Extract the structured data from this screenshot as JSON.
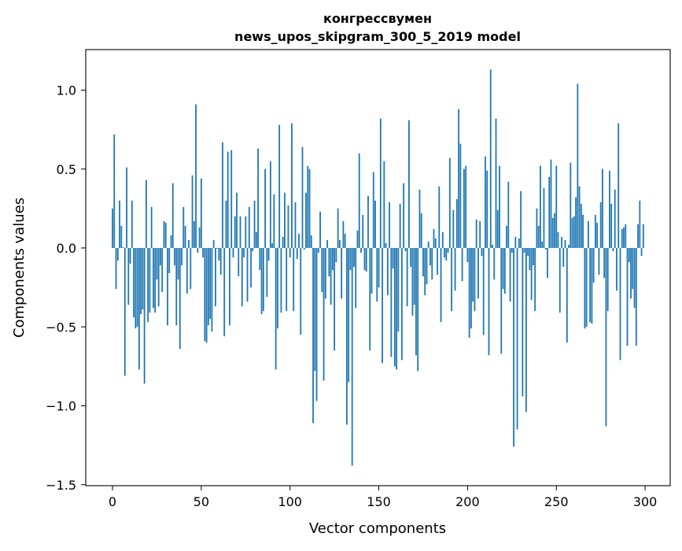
{
  "chart_data": {
    "type": "bar",
    "title": "конгрессвумен",
    "subtitle": "news_upos_skipgram_300_5_2019 model",
    "xlabel": "Vector components",
    "ylabel": "Components values",
    "xlim": [
      -13,
      316
    ],
    "ylim": [
      -1.5,
      1.25
    ],
    "xticks": [
      0,
      50,
      100,
      150,
      200,
      250,
      300
    ],
    "xtick_labels": [
      "0",
      "50",
      "100",
      "150",
      "200",
      "250",
      "300"
    ],
    "yticks": [
      -1.5,
      -1.0,
      -0.5,
      0.0,
      0.5,
      1.0
    ],
    "ytick_labels": [
      "−1.5",
      "−1.0",
      "−0.5",
      "0.0",
      "0.5",
      "1.0"
    ],
    "grid": false,
    "bar_color": "#1f77b4",
    "values": [
      0.25,
      0.72,
      -0.26,
      -0.08,
      0.3,
      0.14,
      0.005,
      -0.81,
      0.51,
      -0.36,
      -0.1,
      0.3,
      -0.44,
      -0.51,
      -0.5,
      -0.77,
      -0.42,
      -0.39,
      -0.86,
      0.43,
      -0.47,
      -0.41,
      0.26,
      -0.38,
      -0.41,
      -0.2,
      -0.37,
      -0.11,
      -0.28,
      0.17,
      0.16,
      -0.49,
      -0.16,
      0.08,
      0.41,
      -0.11,
      -0.49,
      -0.2,
      -0.64,
      -0.11,
      0.26,
      0.14,
      -0.29,
      0.05,
      -0.26,
      0.46,
      0.17,
      0.91,
      -0.03,
      0.13,
      0.44,
      -0.06,
      -0.59,
      -0.6,
      -0.49,
      -0.45,
      -0.53,
      0.05,
      -0.37,
      -0.005,
      -0.08,
      -0.17,
      0.67,
      -0.56,
      0.3,
      0.61,
      -0.49,
      0.62,
      -0.06,
      0.2,
      0.35,
      -0.18,
      0.2,
      -0.37,
      -0.06,
      0.2,
      -0.34,
      0.26,
      -0.25,
      -0.02,
      0.3,
      0.1,
      0.63,
      -0.14,
      -0.42,
      -0.4,
      0.5,
      -0.31,
      -0.08,
      0.55,
      0.03,
      0.34,
      -0.77,
      -0.51,
      0.78,
      -0.41,
      0.07,
      0.35,
      -0.4,
      0.27,
      -0.06,
      0.79,
      -0.4,
      0.29,
      -0.07,
      0.09,
      -0.55,
      0.64,
      -0.01,
      0.35,
      0.52,
      0.5,
      0.08,
      -1.11,
      -0.78,
      -0.97,
      -0.03,
      0.23,
      -0.28,
      -0.84,
      -0.32,
      0.05,
      -0.18,
      -0.36,
      -0.14,
      -0.65,
      -0.09,
      0.25,
      0.05,
      -0.32,
      0.17,
      0.09,
      -1.12,
      -0.85,
      -0.14,
      -1.38,
      -0.12,
      -0.38,
      0.11,
      0.6,
      -0.03,
      0.21,
      -0.14,
      -0.15,
      0.33,
      -0.65,
      -0.29,
      0.48,
      0.3,
      -0.34,
      -0.25,
      0.82,
      -0.73,
      0.55,
      0.03,
      -0.3,
      0.29,
      -0.69,
      -0.13,
      -0.75,
      -0.77,
      -0.53,
      0.28,
      -0.71,
      0.41,
      -0.02,
      -0.37,
      0.81,
      -0.12,
      -0.43,
      -0.36,
      -0.68,
      -0.78,
      0.37,
      0.22,
      -0.18,
      -0.3,
      -0.23,
      0.04,
      -0.11,
      -0.2,
      0.12,
      0.06,
      -0.17,
      0.39,
      -0.47,
      0.1,
      -0.06,
      -0.08,
      -0.03,
      0.57,
      -0.4,
      0.24,
      -0.27,
      0.31,
      0.88,
      0.66,
      -0.21,
      0.5,
      0.52,
      -0.09,
      -0.57,
      -0.51,
      -0.34,
      -0.4,
      0.18,
      -0.32,
      0.17,
      -0.05,
      -0.55,
      0.58,
      0.49,
      -0.68,
      1.13,
      0.02,
      -0.2,
      0.82,
      0.24,
      0.52,
      -0.67,
      -0.26,
      -0.29,
      0.14,
      0.42,
      -0.34,
      -0.03,
      -1.26,
      0.07,
      -1.15,
      0.06,
      0.36,
      -0.94,
      -0.03,
      -1.04,
      -0.05,
      -0.14,
      -0.33,
      -0.11,
      -0.4,
      0.25,
      0.14,
      0.52,
      0.04,
      0.38,
      -0.01,
      -0.19,
      0.45,
      0.56,
      0.19,
      0.22,
      0.52,
      0.1,
      -0.41,
      0.07,
      -0.12,
      0.05,
      -0.6,
      0.02,
      0.54,
      0.19,
      0.2,
      0.32,
      1.04,
      0.39,
      0.28,
      0.21,
      -0.51,
      -0.5,
      0.17,
      -0.47,
      -0.48,
      -0.22,
      0.21,
      0.16,
      -0.17,
      0.29,
      0.5,
      -0.19,
      -1.13,
      -0.4,
      0.49,
      0.28,
      -0.02,
      0.37,
      -0.27,
      0.79,
      -0.71,
      0.12,
      0.13,
      0.15,
      -0.62,
      -0.09,
      -0.32,
      -0.26,
      -0.38,
      -0.62,
      0.15,
      0.3,
      -0.05,
      0.15
    ]
  }
}
